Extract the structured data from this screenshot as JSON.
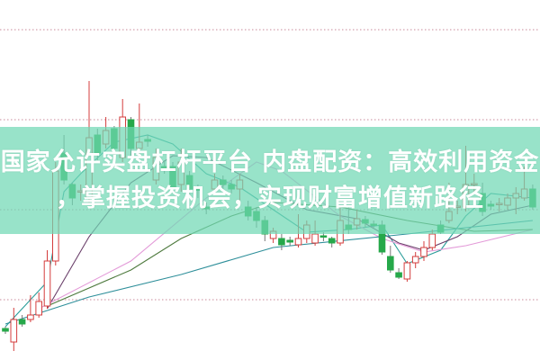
{
  "banner": {
    "line1": "国家允许实盘杠杆平台 内盘配资：高效利用资金",
    "line2": "，掌握投资机会，实现财富增值新路径",
    "background": "#70d8b4"
  },
  "chart_data": {
    "type": "candlestick",
    "title": "",
    "xlabel": "",
    "ylabel": "",
    "ylim": [
      3,
      45
    ],
    "grid": {
      "on": true,
      "style": "dotted",
      "levels": [
        40,
        30,
        20,
        10
      ],
      "color": "#c98a9a"
    },
    "colors": {
      "up": "#d43c3c",
      "down": "#26a84a"
    },
    "candles": [
      [
        6.8,
        6.5,
        7.0,
        6.2
      ],
      [
        5.3,
        7.8,
        9.1,
        4.3
      ],
      [
        7.8,
        7.3,
        8.3,
        7.0
      ],
      [
        7.8,
        8.3,
        10.5,
        7.5
      ],
      [
        8.3,
        9.8,
        10.8,
        8.0
      ],
      [
        9.3,
        14.3,
        15.5,
        9.0
      ],
      [
        14.3,
        24.3,
        25.3,
        13.8
      ],
      [
        26.3,
        23.3,
        28.3,
        22.8
      ],
      [
        22.8,
        21.3,
        23.0,
        20.5
      ],
      [
        22.0,
        22.1,
        22.8,
        21.0
      ],
      [
        21.3,
        28.0,
        34.3,
        20.8
      ],
      [
        28.3,
        26.3,
        29.0,
        25.5
      ],
      [
        27.3,
        28.8,
        30.3,
        26.8
      ],
      [
        29.0,
        26.8,
        29.3,
        26.0
      ],
      [
        25.8,
        30.3,
        32.3,
        25.3
      ],
      [
        30.0,
        26.8,
        30.3,
        26.0
      ],
      [
        26.8,
        27.5,
        31.8,
        25.8
      ],
      [
        27.8,
        27.6,
        28.3,
        27.0
      ],
      [
        23.3,
        25.8,
        26.8,
        22.8
      ],
      [
        24.8,
        24.6,
        25.5,
        24.0
      ],
      [
        24.8,
        22.3,
        25.3,
        21.8
      ],
      [
        22.8,
        25.3,
        26.8,
        22.0
      ],
      [
        23.8,
        22.3,
        24.3,
        21.5
      ],
      [
        22.3,
        22.2,
        22.8,
        21.3
      ],
      [
        20.3,
        20.1,
        20.8,
        19.5
      ],
      [
        22.3,
        23.3,
        24.0,
        21.8
      ],
      [
        23.3,
        22.8,
        23.8,
        22.0
      ],
      [
        22.8,
        22.3,
        23.3,
        21.8
      ],
      [
        22.3,
        23.3,
        24.0,
        21.0
      ],
      [
        20.3,
        19.3,
        21.0,
        18.8
      ],
      [
        19.8,
        18.8,
        20.3,
        18.0
      ],
      [
        18.8,
        17.3,
        19.3,
        16.5
      ],
      [
        16.8,
        17.6,
        18.0,
        16.3
      ],
      [
        16.8,
        16.1,
        17.3,
        15.5
      ],
      [
        16.6,
        16.4,
        17.0,
        16.0
      ],
      [
        16.1,
        16.8,
        19.5,
        15.8
      ],
      [
        16.8,
        18.3,
        18.8,
        16.3
      ],
      [
        16.3,
        17.3,
        18.8,
        16.0
      ],
      [
        17.1,
        17.0,
        17.5,
        16.5
      ],
      [
        16.8,
        16.3,
        17.0,
        15.8
      ],
      [
        16.3,
        18.8,
        20.3,
        16.0
      ],
      [
        18.3,
        17.8,
        20.3,
        17.3
      ],
      [
        18.3,
        19.0,
        20.0,
        17.8
      ],
      [
        18.9,
        18.5,
        19.3,
        18.0
      ],
      [
        18.4,
        18.3,
        18.8,
        18.0
      ],
      [
        18.3,
        15.3,
        18.8,
        15.0
      ],
      [
        14.8,
        13.3,
        16.0,
        13.0
      ],
      [
        13.0,
        12.5,
        13.5,
        12.3
      ],
      [
        12.3,
        14.1,
        14.3,
        12.0
      ],
      [
        14.1,
        14.8,
        15.3,
        13.5
      ],
      [
        14.8,
        15.8,
        16.5,
        14.3
      ],
      [
        15.8,
        17.3,
        17.8,
        15.5
      ],
      [
        18.3,
        17.5,
        18.8,
        17.3
      ],
      [
        18.8,
        19.8,
        23.0,
        18.5
      ],
      [
        20.3,
        20.4,
        21.0,
        19.5
      ],
      [
        20.3,
        22.8,
        27.1,
        19.8
      ],
      [
        22.8,
        22.9,
        24.0,
        22.0
      ],
      [
        21.8,
        19.8,
        23.0,
        19.3
      ],
      [
        20.6,
        20.4,
        21.0,
        20.0
      ],
      [
        20.6,
        20.7,
        21.3,
        19.8
      ],
      [
        20.5,
        21.3,
        21.8,
        20.0
      ],
      [
        21.3,
        21.8,
        22.5,
        19.5
      ],
      [
        21.3,
        22.3,
        24.8,
        21.0
      ],
      [
        22.3,
        20.3,
        22.8,
        20.0
      ]
    ],
    "candle_fields": [
      "open",
      "close",
      "high",
      "low"
    ],
    "moving_averages": [
      {
        "color": "#2a9d9a",
        "points": [
          [
            0,
            7.0
          ],
          [
            5,
            12
          ],
          [
            7,
            22
          ],
          [
            9,
            24
          ],
          [
            13,
            27.5
          ],
          [
            17,
            28.3
          ],
          [
            20,
            27.3
          ],
          [
            24,
            24.0
          ],
          [
            28,
            22.5
          ],
          [
            32,
            20
          ],
          [
            36,
            17.5
          ],
          [
            41,
            17.8
          ],
          [
            45,
            18.3
          ],
          [
            48,
            14.0
          ],
          [
            52,
            15.5
          ],
          [
            55,
            19.3
          ],
          [
            58,
            21.8
          ],
          [
            63,
            21.3
          ]
        ]
      },
      {
        "color": "#6a3f6a",
        "points": [
          [
            5,
            9
          ],
          [
            10,
            17
          ],
          [
            15,
            23
          ],
          [
            20,
            26
          ],
          [
            24,
            25.8
          ],
          [
            30,
            23
          ],
          [
            36,
            20
          ],
          [
            42,
            19
          ],
          [
            47,
            16.3
          ],
          [
            50,
            15.5
          ],
          [
            54,
            17
          ],
          [
            58,
            19.5
          ],
          [
            63,
            20.5
          ]
        ]
      },
      {
        "color": "#e39ad8",
        "points": [
          [
            4,
            9.0
          ],
          [
            15,
            14.3
          ],
          [
            24,
            21.3
          ],
          [
            30,
            25.3
          ],
          [
            33,
            24.3
          ],
          [
            40,
            19.3
          ],
          [
            45,
            16.8
          ],
          [
            50,
            15.3
          ],
          [
            55,
            16.0
          ],
          [
            63,
            17.8
          ]
        ]
      },
      {
        "color": "#4e7a3e",
        "points": [
          [
            5,
            9.3
          ],
          [
            15,
            13.3
          ],
          [
            21,
            16.8
          ],
          [
            27,
            19.3
          ],
          [
            32,
            20.8
          ],
          [
            40,
            20.3
          ],
          [
            48,
            18.8
          ],
          [
            56,
            17.6
          ],
          [
            63,
            17.8
          ]
        ]
      },
      {
        "color": "#2e8f9a",
        "points": [
          [
            0,
            7.3
          ],
          [
            10,
            10.3
          ],
          [
            21,
            12.8
          ],
          [
            32,
            15.8
          ],
          [
            48,
            17.3
          ],
          [
            63,
            18.8
          ]
        ]
      }
    ]
  }
}
